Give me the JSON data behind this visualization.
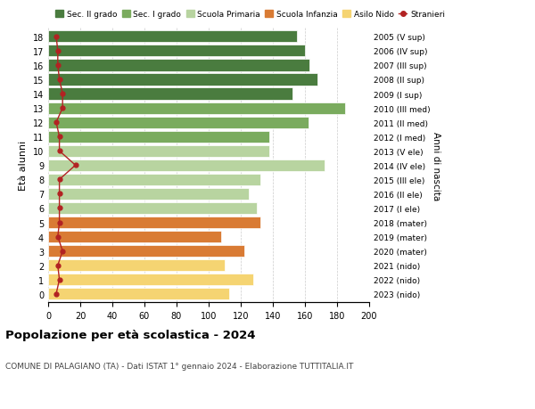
{
  "ages": [
    18,
    17,
    16,
    15,
    14,
    13,
    12,
    11,
    10,
    9,
    8,
    7,
    6,
    5,
    4,
    3,
    2,
    1,
    0
  ],
  "bar_values": [
    155,
    160,
    163,
    168,
    152,
    185,
    162,
    138,
    138,
    172,
    132,
    125,
    130,
    132,
    108,
    122,
    110,
    128,
    113
  ],
  "right_labels": [
    "2005 (V sup)",
    "2006 (IV sup)",
    "2007 (III sup)",
    "2008 (II sup)",
    "2009 (I sup)",
    "2010 (III med)",
    "2011 (II med)",
    "2012 (I med)",
    "2013 (V ele)",
    "2014 (IV ele)",
    "2015 (III ele)",
    "2016 (II ele)",
    "2017 (I ele)",
    "2018 (mater)",
    "2019 (mater)",
    "2020 (mater)",
    "2021 (nido)",
    "2022 (nido)",
    "2023 (nido)"
  ],
  "stranieri_values": [
    5,
    6,
    6,
    7,
    9,
    9,
    5,
    7,
    7,
    17,
    7,
    7,
    7,
    7,
    6,
    9,
    6,
    7,
    5
  ],
  "bar_colors": [
    "#4a7c3f",
    "#4a7c3f",
    "#4a7c3f",
    "#4a7c3f",
    "#4a7c3f",
    "#7aab5e",
    "#7aab5e",
    "#7aab5e",
    "#b8d4a0",
    "#b8d4a0",
    "#b8d4a0",
    "#b8d4a0",
    "#b8d4a0",
    "#d97b34",
    "#d97b34",
    "#d97b34",
    "#f5d472",
    "#f5d472",
    "#f5d472"
  ],
  "legend_labels": [
    "Sec. II grado",
    "Sec. I grado",
    "Scuola Primaria",
    "Scuola Infanzia",
    "Asilo Nido",
    "Stranieri"
  ],
  "legend_colors": [
    "#4a7c3f",
    "#7aab5e",
    "#b8d4a0",
    "#d97b34",
    "#f5d472",
    "#b22222"
  ],
  "ylabel_left": "Età alunni",
  "ylabel_right": "Anni di nascita",
  "xlim": [
    0,
    200
  ],
  "xticks": [
    0,
    20,
    40,
    60,
    80,
    100,
    120,
    140,
    160,
    180,
    200
  ],
  "title": "Popolazione per età scolastica - 2024",
  "subtitle": "COMUNE DI PALAGIANO (TA) - Dati ISTAT 1° gennaio 2024 - Elaborazione TUTTITALIA.IT",
  "grid_color": "#cccccc",
  "stranieri_color": "#b22222",
  "bar_height": 0.82
}
